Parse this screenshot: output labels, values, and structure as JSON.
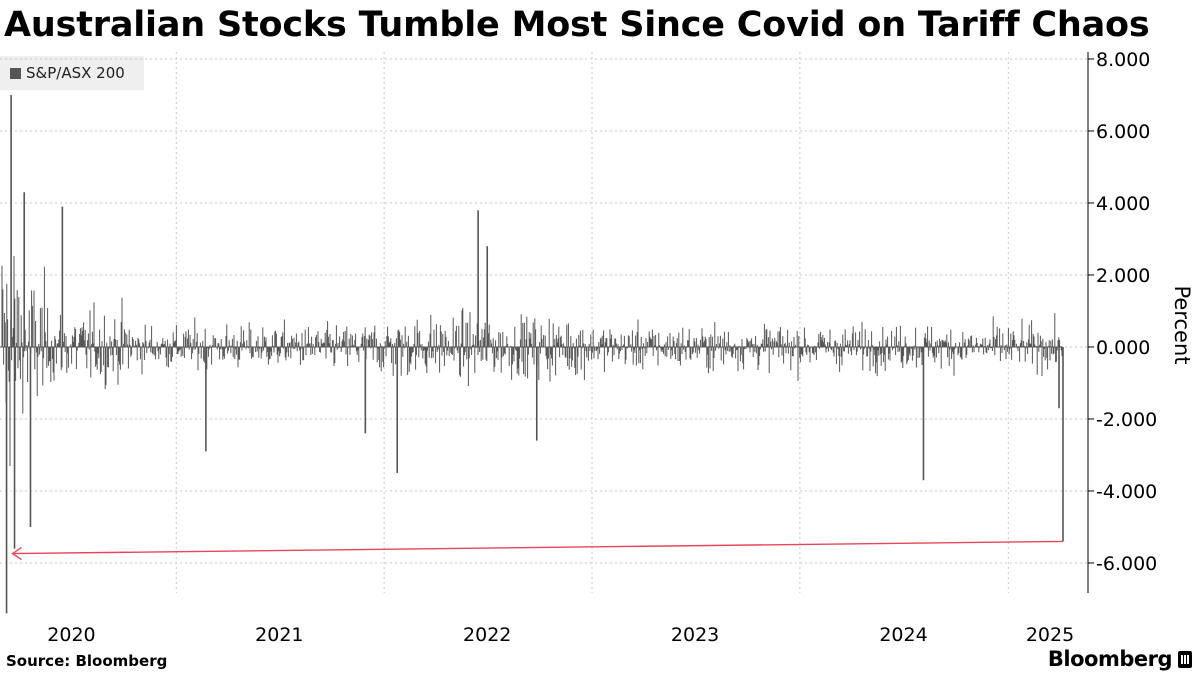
{
  "title": "Australian Stocks Tumble Most Since Covid on Tariff Chaos",
  "source": "Source: Bloomberg",
  "brand": "Bloomberg",
  "colors": {
    "bars": "#555555",
    "trendline": "#e8465a",
    "grid": "#c8c8c8"
  },
  "chart_data": {
    "type": "bar",
    "series": [
      {
        "name": "S&P/ASX 200"
      }
    ],
    "ylabel": "Percent",
    "ylim": [
      -6.8,
      8.4
    ],
    "yticks": [
      "8.000",
      "6.000",
      "4.000",
      "2.000",
      "0.000",
      "-2.000",
      "-4.000",
      "-6.000"
    ],
    "ytick_values": [
      8,
      6,
      4,
      2,
      0,
      -2,
      -4,
      -6
    ],
    "xticks": [
      "2020",
      "2021",
      "2022",
      "2023",
      "2024",
      "2025"
    ],
    "xlim": [
      "2020-01-01",
      "2025-04-30"
    ],
    "grid": true,
    "legend": "top-left",
    "notable_moves": [
      {
        "date": "2020-03-17",
        "value": 7.0
      },
      {
        "date": "2020-03-09",
        "value": -7.4
      },
      {
        "date": "2020-03-23",
        "value": -5.6
      },
      {
        "date": "2020-04-20",
        "value": -5.0
      },
      {
        "date": "2020-04-09",
        "value": 4.3
      },
      {
        "date": "2020-06-15",
        "value": 3.9
      },
      {
        "date": "2022-06-15",
        "value": 3.8
      },
      {
        "date": "2022-07-01",
        "value": 2.8
      },
      {
        "date": "2021-02-22",
        "value": -2.9
      },
      {
        "date": "2021-11-29",
        "value": -2.4
      },
      {
        "date": "2022-01-24",
        "value": -3.5
      },
      {
        "date": "2022-09-26",
        "value": -2.6
      },
      {
        "date": "2024-08-05",
        "value": -3.7
      },
      {
        "date": "2025-03-31",
        "value": -1.7
      },
      {
        "date": "2025-04-07",
        "value": -5.4
      }
    ],
    "trendline": {
      "from": {
        "date": "2020-03-23",
        "value": -5.6
      },
      "to": {
        "date": "2025-04-07",
        "value": -5.4
      }
    }
  }
}
